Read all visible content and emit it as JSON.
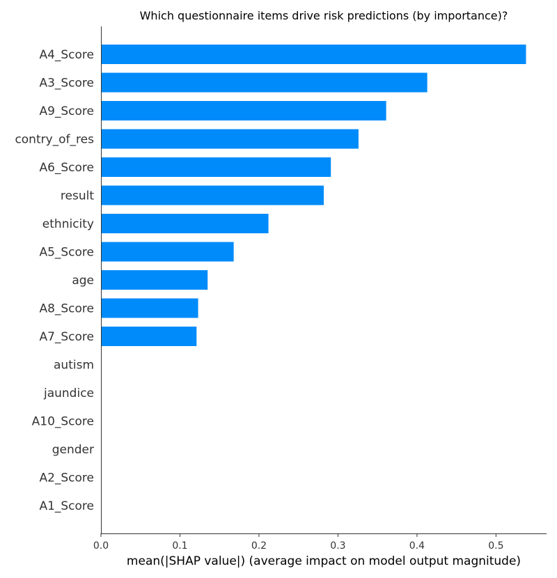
{
  "chart_data": {
    "type": "bar",
    "orientation": "horizontal",
    "title": "Which questionnaire items drive risk predictions (by importance)?",
    "xlabel": "mean(|SHAP value|) (average impact on model output magnitude)",
    "ylabel": "",
    "xlim": [
      0,
      0.564
    ],
    "x_ticks": [
      "0.0",
      "0.1",
      "0.2",
      "0.3",
      "0.4",
      "0.5"
    ],
    "categories": [
      "A4_Score",
      "A3_Score",
      "A9_Score",
      "contry_of_res",
      "A6_Score",
      "result",
      "ethnicity",
      "A5_Score",
      "age",
      "A8_Score",
      "A7_Score",
      "autism",
      "jaundice",
      "A10_Score",
      "gender",
      "A2_Score",
      "A1_Score"
    ],
    "values": [
      0.538,
      0.413,
      0.361,
      0.326,
      0.291,
      0.282,
      0.212,
      0.168,
      0.135,
      0.123,
      0.121,
      0,
      0,
      0,
      0,
      0,
      0
    ],
    "bar_color": "#008bfb",
    "axis_color": "#333333",
    "label_color": "#333333",
    "grid": false,
    "legend": "none"
  }
}
